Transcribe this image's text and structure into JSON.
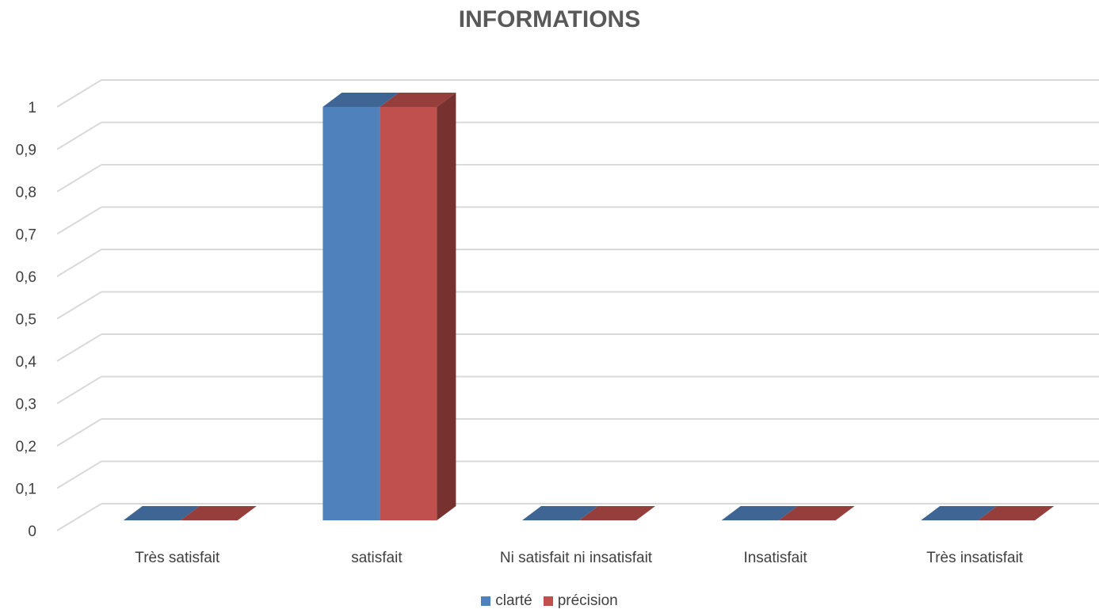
{
  "chart_data": {
    "type": "bar",
    "title": "INFORMATIONS",
    "categories": [
      "Très satisfait",
      "satisfait",
      "Ni satisfait ni insatisfait",
      "Insatisfait",
      "Très insatisfait"
    ],
    "series": [
      {
        "name": "clarté",
        "values": [
          0,
          1,
          0,
          0,
          0
        ],
        "color": "#4F81BD"
      },
      {
        "name": "précision",
        "values": [
          0,
          1,
          0,
          0,
          0
        ],
        "color": "#C0504D"
      }
    ],
    "ylim": [
      0,
      1
    ],
    "yticks": [
      "0",
      "0,1",
      "0,2",
      "0,3",
      "0,4",
      "0,5",
      "0,6",
      "0,7",
      "0,8",
      "0,9",
      "1"
    ],
    "grid": true,
    "legend_position": "bottom",
    "style": "3d-clustered-column"
  }
}
